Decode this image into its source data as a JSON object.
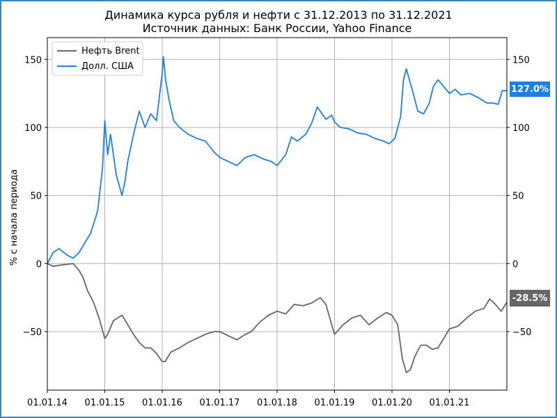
{
  "chart_data": {
    "type": "line",
    "title": "Динамика курса рубля и нефти с 31.12.2013 по 31.12.2021",
    "subtitle": "Источник данных: Банк России, Yahoo Finance",
    "xlabel": "",
    "ylabel": "% с начала периода",
    "ylim": [
      -93,
      166
    ],
    "yticks": [
      150,
      100,
      50,
      0,
      -50
    ],
    "ytick_labels": [
      "150",
      "100",
      "50",
      "0",
      "−50"
    ],
    "x_ticks": [
      2014,
      2015,
      2016,
      2017,
      2018,
      2019,
      2020,
      2021
    ],
    "x_tick_labels": [
      "01.01.14",
      "01.01.15",
      "01.01.16",
      "01.01.17",
      "01.01.18",
      "01.01.19",
      "01.01.20",
      "01.01.21"
    ],
    "xlim": [
      2014.0,
      2022.0
    ],
    "grid": true,
    "legend_position": "top-left",
    "series": [
      {
        "name": "Нефть Brent",
        "color": "#666666",
        "end_label": "-28.5%",
        "x": [
          2014.0,
          2014.1,
          2014.25,
          2014.45,
          2014.55,
          2014.62,
          2014.7,
          2014.8,
          2014.9,
          2015.0,
          2015.05,
          2015.15,
          2015.3,
          2015.4,
          2015.5,
          2015.6,
          2015.7,
          2015.8,
          2015.9,
          2016.0,
          2016.05,
          2016.15,
          2016.3,
          2016.45,
          2016.6,
          2016.75,
          2016.9,
          2017.0,
          2017.15,
          2017.3,
          2017.45,
          2017.55,
          2017.7,
          2017.85,
          2018.0,
          2018.15,
          2018.3,
          2018.45,
          2018.6,
          2018.75,
          2018.85,
          2018.95,
          2019.0,
          2019.15,
          2019.3,
          2019.45,
          2019.6,
          2019.75,
          2019.9,
          2020.0,
          2020.1,
          2020.18,
          2020.25,
          2020.32,
          2020.4,
          2020.5,
          2020.6,
          2020.7,
          2020.8,
          2020.9,
          2021.0,
          2021.15,
          2021.3,
          2021.45,
          2021.6,
          2021.7,
          2021.8,
          2021.9,
          2022.0
        ],
        "values": [
          0,
          -2,
          -1,
          0,
          -5,
          -10,
          -20,
          -28,
          -40,
          -55,
          -52,
          -42,
          -38,
          -45,
          -52,
          -58,
          -62,
          -62,
          -66,
          -72,
          -72,
          -65,
          -62,
          -58,
          -55,
          -52,
          -50,
          -50,
          -53,
          -56,
          -52,
          -50,
          -43,
          -38,
          -35,
          -37,
          -30,
          -31,
          -29,
          -25,
          -30,
          -45,
          -52,
          -45,
          -40,
          -38,
          -45,
          -40,
          -36,
          -38,
          -45,
          -70,
          -80,
          -78,
          -68,
          -60,
          -60,
          -63,
          -62,
          -55,
          -48,
          -46,
          -40,
          -35,
          -33,
          -26,
          -30,
          -35,
          -28.5
        ]
      },
      {
        "name": "Долл. США",
        "color": "#1a80e6",
        "end_label": "127.0%",
        "x": [
          2014.0,
          2014.1,
          2014.2,
          2014.35,
          2014.45,
          2014.55,
          2014.65,
          2014.75,
          2014.85,
          2014.88,
          2014.92,
          2014.96,
          2015.0,
          2015.05,
          2015.1,
          2015.2,
          2015.3,
          2015.35,
          2015.4,
          2015.5,
          2015.6,
          2015.7,
          2015.8,
          2015.9,
          2016.0,
          2016.02,
          2016.06,
          2016.12,
          2016.2,
          2016.3,
          2016.45,
          2016.6,
          2016.75,
          2016.9,
          2017.0,
          2017.15,
          2017.3,
          2017.45,
          2017.6,
          2017.75,
          2017.9,
          2018.0,
          2018.15,
          2018.25,
          2018.35,
          2018.5,
          2018.6,
          2018.7,
          2018.85,
          2018.95,
          2019.0,
          2019.1,
          2019.25,
          2019.4,
          2019.55,
          2019.7,
          2019.85,
          2019.95,
          2020.05,
          2020.15,
          2020.2,
          2020.25,
          2020.35,
          2020.45,
          2020.55,
          2020.65,
          2020.72,
          2020.8,
          2020.9,
          2021.0,
          2021.1,
          2021.2,
          2021.35,
          2021.5,
          2021.65,
          2021.75,
          2021.85,
          2021.92,
          2022.0
        ],
        "values": [
          0,
          8,
          11,
          6,
          4,
          8,
          15,
          22,
          35,
          40,
          55,
          70,
          105,
          80,
          95,
          65,
          50,
          60,
          75,
          95,
          112,
          100,
          110,
          105,
          140,
          152,
          135,
          120,
          105,
          100,
          95,
          92,
          90,
          82,
          78,
          75,
          72,
          78,
          80,
          77,
          75,
          72,
          80,
          93,
          90,
          95,
          103,
          115,
          106,
          109,
          104,
          100,
          99,
          96,
          95,
          92,
          90,
          88,
          92,
          108,
          135,
          143,
          128,
          112,
          110,
          118,
          130,
          135,
          130,
          125,
          128,
          124,
          125,
          122,
          118,
          118,
          117,
          127,
          127.0
        ]
      }
    ]
  }
}
